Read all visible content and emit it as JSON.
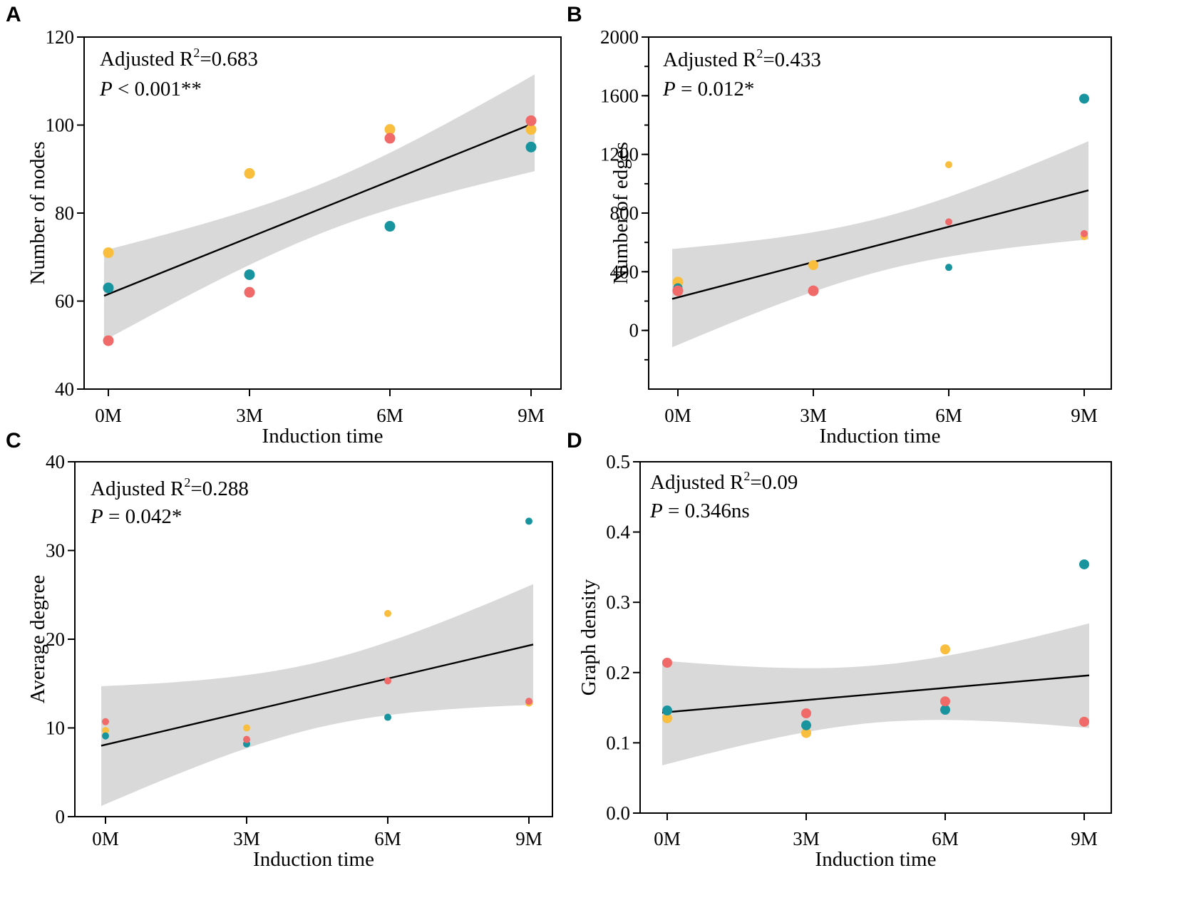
{
  "chart_data": [
    {
      "type": "scatter",
      "panel": "A",
      "xlabel": "Induction time",
      "ylabel": "Number of nodes",
      "categories": [
        "0M",
        "3M",
        "6M",
        "9M"
      ],
      "ylim": [
        40,
        120
      ],
      "yticks": [
        40,
        60,
        80,
        100,
        120
      ],
      "annotation": {
        "r2_prefix": "Adjusted R",
        "r2_sup": "2",
        "r2_value": "=0.683",
        "p_letter": "P",
        "p_text": " < 0.001**"
      },
      "fit": {
        "start": 61.2,
        "end": 100.5
      },
      "band": {
        "upper": [
          71.5,
          111.5
        ],
        "lower": [
          51.0,
          89.5
        ]
      },
      "series": [
        {
          "name": "yellow",
          "color": "#F9BE3E",
          "values": [
            71,
            89,
            99,
            99
          ],
          "radius": 7.5
        },
        {
          "name": "teal",
          "color": "#18949F",
          "values": [
            63,
            66,
            77,
            95
          ],
          "radius": 7.5
        },
        {
          "name": "red",
          "color": "#F06A6A",
          "values": [
            51,
            62,
            97,
            101
          ],
          "radius": 7.5
        }
      ]
    },
    {
      "type": "scatter",
      "panel": "B",
      "xlabel": "Induction time",
      "ylabel": "Number of edges",
      "categories": [
        "0M",
        "3M",
        "6M",
        "9M"
      ],
      "ylim": [
        -400,
        2000
      ],
      "yticks": [
        0,
        400,
        800,
        1200,
        1600,
        2000
      ],
      "annotation": {
        "r2_prefix": "Adjusted R",
        "r2_sup": "2",
        "r2_value": "=0.433",
        "p_letter": "P",
        "p_text": " = 0.012*"
      },
      "fit": {
        "start": 215,
        "end": 955
      },
      "band": {
        "upper": [
          555,
          1290
        ],
        "lower": [
          -115,
          620
        ]
      },
      "series": [
        {
          "name": "yellow",
          "color": "#F9BE3E",
          "values": [
            330,
            445,
            1130,
            640
          ],
          "radius": [
            7.5,
            7,
            5,
            5
          ]
        },
        {
          "name": "teal",
          "color": "#18949F",
          "values": [
            290,
            275,
            430,
            1580
          ],
          "radius": [
            6.5,
            6,
            5,
            7
          ]
        },
        {
          "name": "red",
          "color": "#F06A6A",
          "values": [
            270,
            270,
            740,
            660
          ],
          "radius": [
            7.5,
            7.5,
            5,
            5
          ]
        }
      ]
    },
    {
      "type": "scatter",
      "panel": "C",
      "xlabel": "Induction time",
      "ylabel": "Average degree",
      "categories": [
        "0M",
        "3M",
        "6M",
        "9M"
      ],
      "ylim": [
        0,
        40
      ],
      "yticks": [
        0,
        10,
        20,
        30,
        40
      ],
      "annotation": {
        "r2_prefix": "Adjusted R",
        "r2_sup": "2",
        "r2_value": "=0.288",
        "p_letter": "P",
        "p_text": " = 0.042*"
      },
      "fit": {
        "start": 8.0,
        "end": 19.4
      },
      "band": {
        "upper": [
          14.7,
          26.2
        ],
        "lower": [
          1.2,
          12.6
        ]
      },
      "series": [
        {
          "name": "yellow",
          "color": "#F9BE3E",
          "values": [
            9.7,
            10.0,
            22.9,
            12.8
          ],
          "radius": 5
        },
        {
          "name": "teal",
          "color": "#18949F",
          "values": [
            9.1,
            8.2,
            11.2,
            33.3
          ],
          "radius": 5
        },
        {
          "name": "red",
          "color": "#F06A6A",
          "values": [
            10.7,
            8.7,
            15.3,
            13.0
          ],
          "radius": 5
        }
      ]
    },
    {
      "type": "scatter",
      "panel": "D",
      "xlabel": "Induction time",
      "ylabel": "Graph density",
      "categories": [
        "0M",
        "3M",
        "6M",
        "9M"
      ],
      "ylim": [
        0.0,
        0.5
      ],
      "yticks": [
        0.0,
        0.1,
        0.2,
        0.3,
        0.4,
        0.5
      ],
      "annotation": {
        "r2_prefix": "Adjusted R",
        "r2_sup": "2",
        "r2_value": "=0.09",
        "p_letter": "P",
        "p_text": " = 0.346ns"
      },
      "fit": {
        "start": 0.143,
        "end": 0.196
      },
      "band": {
        "upper": [
          0.217,
          0.27
        ],
        "lower": [
          0.068,
          0.121
        ]
      },
      "series": [
        {
          "name": "yellow",
          "color": "#F9BE3E",
          "values": [
            0.135,
            0.114,
            0.233,
            0.13
          ],
          "radius": 7
        },
        {
          "name": "teal",
          "color": "#18949F",
          "values": [
            0.146,
            0.125,
            0.147,
            0.354
          ],
          "radius": 7
        },
        {
          "name": "red",
          "color": "#F06A6A",
          "values": [
            0.214,
            0.142,
            0.159,
            0.13
          ],
          "radius": 7
        }
      ]
    }
  ]
}
